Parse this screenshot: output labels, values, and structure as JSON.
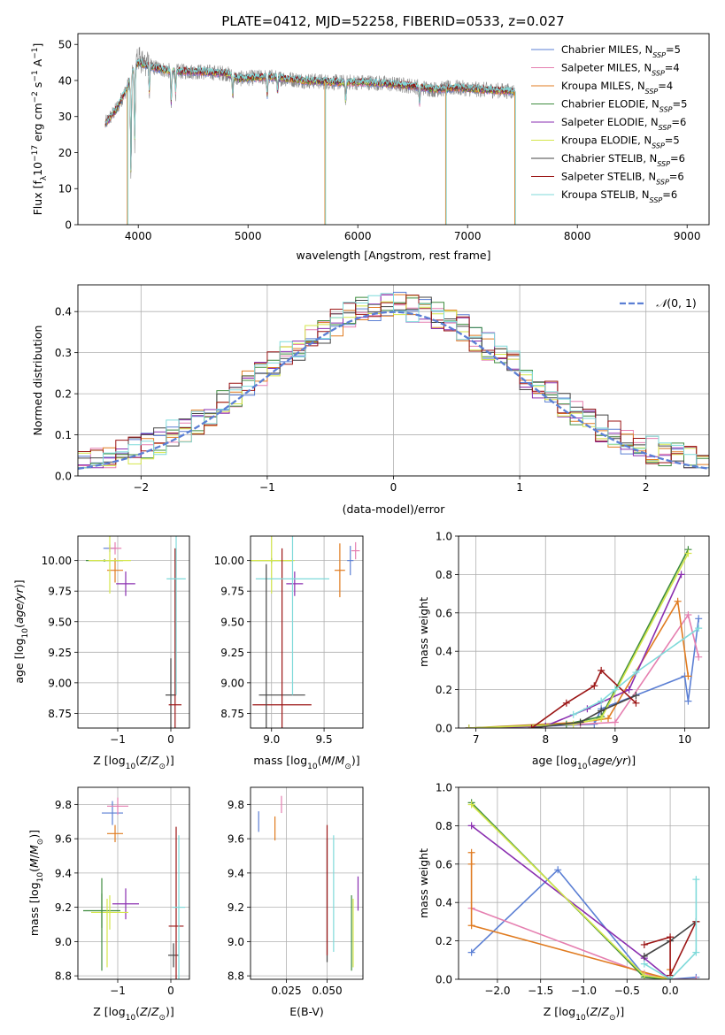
{
  "figure_title": "PLATE=0412, MJD=52258, FIBERID=0533, z=0.027",
  "colors": {
    "chabrier_miles": "#5b7fd4",
    "salpeter_miles": "#e57fb0",
    "kroupa_miles": "#e07b20",
    "chabrier_elodie": "#3e8c3e",
    "salpeter_elodie": "#8a2eb0",
    "kroupa_elodie": "#d4e64a",
    "chabrier_stelib": "#444444",
    "salpeter_stelib": "#9b1515",
    "kroupa_stelib": "#7fdada",
    "grid": "#b0b0b0"
  },
  "legend_labels": [
    {
      "pre": "Chabrier MILES, N",
      "sub": "SSP",
      "post": "=5"
    },
    {
      "pre": "Salpeter MILES, N",
      "sub": "SSP",
      "post": "=4"
    },
    {
      "pre": "Kroupa MILES, N",
      "sub": "SSP",
      "post": "=4"
    },
    {
      "pre": "Chabrier ELODIE, N",
      "sub": "SSP",
      "post": "=5"
    },
    {
      "pre": "Salpeter ELODIE, N",
      "sub": "SSP",
      "post": "=6"
    },
    {
      "pre": "Kroupa ELODIE, N",
      "sub": "SSP",
      "post": "=5"
    },
    {
      "pre": "Chabrier STELIB, N",
      "sub": "SSP",
      "post": "=6"
    },
    {
      "pre": "Salpeter STELIB, N",
      "sub": "SSP",
      "post": "=6"
    },
    {
      "pre": "Kroupa STELIB, N",
      "sub": "SSP",
      "post": "=6"
    }
  ],
  "chart_data": [
    {
      "id": "spectrum",
      "type": "line",
      "title": "PLATE=0412, MJD=52258, FIBERID=0533, z=0.027",
      "xlabel": "wavelength [Angstrom, rest frame]",
      "ylabel": "Flux [f_λ 10^-17 erg cm^-2 s^-1 A^-1]",
      "xlim": [
        3450,
        9200
      ],
      "ylim": [
        0,
        53
      ],
      "xticks": [
        4000,
        5000,
        6000,
        7000,
        8000,
        9000
      ],
      "yticks": [
        0,
        10,
        20,
        30,
        40,
        50
      ],
      "legend": "top-right",
      "continuum_points": [
        [
          3700,
          28
        ],
        [
          3800,
          32
        ],
        [
          3900,
          38
        ],
        [
          3950,
          43
        ],
        [
          4000,
          45
        ],
        [
          4100,
          44
        ],
        [
          4300,
          42.5
        ],
        [
          4500,
          42.5
        ],
        [
          4800,
          42
        ],
        [
          4900,
          40.5
        ],
        [
          5200,
          41
        ],
        [
          5500,
          40
        ],
        [
          5800,
          39.5
        ],
        [
          6100,
          39.5
        ],
        [
          6300,
          39
        ],
        [
          6500,
          38.5
        ],
        [
          6700,
          37.5
        ],
        [
          6900,
          38
        ],
        [
          7100,
          37.5
        ],
        [
          7400,
          37
        ]
      ],
      "model_continuum_points": [
        [
          7400,
          37
        ],
        [
          7700,
          36.5
        ],
        [
          8000,
          35.5
        ],
        [
          8500,
          34.5
        ],
        [
          9000,
          33
        ],
        [
          9200,
          32.5
        ]
      ],
      "absorption_features": [
        {
          "x": 3933,
          "depth": 30
        },
        {
          "x": 3968,
          "depth": 22
        },
        {
          "x": 4101,
          "depth": 8
        },
        {
          "x": 4300,
          "depth": 10
        },
        {
          "x": 4340,
          "depth": 6
        },
        {
          "x": 4861,
          "depth": 6
        },
        {
          "x": 5175,
          "depth": 6
        },
        {
          "x": 5270,
          "depth": 4
        },
        {
          "x": 5890,
          "depth": 6
        },
        {
          "x": 6563,
          "depth": 5
        }
      ],
      "masked_drops": [
        3900,
        5700,
        6800,
        7430
      ]
    },
    {
      "id": "residuals",
      "type": "step",
      "xlabel": "(data-model)/error",
      "ylabel": "Normed distribution",
      "xlim": [
        -2.5,
        2.5
      ],
      "ylim": [
        0,
        0.465
      ],
      "xticks": [
        -2,
        -1,
        0,
        1,
        2
      ],
      "yticks": [
        0.0,
        0.1,
        0.2,
        0.3,
        0.4
      ],
      "bin_width": 0.1,
      "reference_curve": {
        "label": "N(0,1)",
        "mu": 0,
        "sigma": 1
      },
      "legend": "top-right"
    },
    {
      "id": "age_vs_Z",
      "type": "errorbar",
      "xlabel": "Z [log10(Z/Z⊙)]",
      "ylabel": "age [log10(age/yr)]",
      "xlim": [
        -1.75,
        0.35
      ],
      "ylim": [
        8.63,
        10.2
      ],
      "xticks": [
        -1,
        0
      ],
      "yticks": [
        8.75,
        9.0,
        9.25,
        9.5,
        9.75,
        10.0
      ],
      "points": [
        {
          "s": "chabrier_miles",
          "x": -1.15,
          "y": 10.1,
          "xe": 0.12,
          "ye": 0.03
        },
        {
          "s": "salpeter_miles",
          "x": -1.05,
          "y": 10.1,
          "xe": 0.12,
          "ye": 0.05
        },
        {
          "s": "kroupa_miles",
          "x": -1.05,
          "y": 9.92,
          "xe": 0.15,
          "ye": 0.1
        },
        {
          "s": "chabrier_elodie",
          "x": -1.25,
          "y": 10.0,
          "xe": 0.35,
          "ye": 0.01
        },
        {
          "s": "salpeter_elodie",
          "x": -0.85,
          "y": 9.81,
          "xe": 0.18,
          "ye": 0.1
        },
        {
          "s": "kroupa_elodie",
          "x": -1.15,
          "y": 10.0,
          "xe": 0.4,
          "ye": 0.27
        },
        {
          "s": "chabrier_stelib",
          "x": 0.0,
          "y": 8.9,
          "xe": 0.1,
          "ye": 0.3
        },
        {
          "s": "salpeter_stelib",
          "x": 0.08,
          "y": 8.82,
          "xe": 0.12,
          "ye": 1.28
        },
        {
          "s": "kroupa_stelib",
          "x": 0.1,
          "y": 9.85,
          "xe": 0.18,
          "ye": 0.95
        }
      ]
    },
    {
      "id": "age_vs_mass",
      "type": "errorbar",
      "xlabel": "mass [log10(M/M⊙)]",
      "ylabel": "",
      "xlim": [
        8.8,
        9.87
      ],
      "ylim": [
        8.63,
        10.2
      ],
      "xticks": [
        9.0,
        9.5
      ],
      "yticks": [
        8.75,
        9.0,
        9.25,
        9.5,
        9.75,
        10.0
      ],
      "points": [
        {
          "s": "chabrier_miles",
          "x": 9.75,
          "y": 10.0,
          "xe": 0.03,
          "ye": 0.12
        },
        {
          "s": "salpeter_miles",
          "x": 9.8,
          "y": 10.08,
          "xe": 0.04,
          "ye": 0.07
        },
        {
          "s": "kroupa_miles",
          "x": 9.65,
          "y": 9.92,
          "xe": 0.05,
          "ye": 0.22
        },
        {
          "s": "chabrier_elodie",
          "x": 9.0,
          "y": 10.0,
          "xe": 0.2,
          "ye": 0.02
        },
        {
          "s": "salpeter_elodie",
          "x": 9.22,
          "y": 9.81,
          "xe": 0.08,
          "ye": 0.1
        },
        {
          "s": "kroupa_elodie",
          "x": 9.0,
          "y": 10.0,
          "xe": 0.22,
          "ye": 0.27
        },
        {
          "s": "chabrier_stelib",
          "x": 9.1,
          "y": 8.9,
          "xe": 0.22,
          "ye": 0.0
        },
        {
          "s": "salpeter_stelib",
          "x": 9.1,
          "y": 8.82,
          "xe": 0.28,
          "ye": 1.28
        },
        {
          "s": "kroupa_stelib",
          "x": 9.2,
          "y": 9.85,
          "xe": 0.35,
          "ye": 0.95
        },
        {
          "s": "chabrier_stelib",
          "x": 8.95,
          "y": 8.9,
          "xe": 0.0,
          "ye": 1.07
        }
      ]
    },
    {
      "id": "weight_vs_age",
      "type": "line",
      "xlabel": "age [log10(age/yr)]",
      "ylabel": "mass weight",
      "xlim": [
        6.75,
        10.35
      ],
      "ylim": [
        0,
        1.0
      ],
      "xticks": [
        7,
        8,
        9,
        10
      ],
      "yticks": [
        0.0,
        0.2,
        0.4,
        0.6,
        0.8,
        1.0
      ],
      "series": [
        {
          "s": "chabrier_miles",
          "x": [
            6.9,
            8.0,
            8.7,
            8.8,
            10.0,
            10.05,
            10.2
          ],
          "y": [
            0.0,
            0.01,
            0.02,
            0.1,
            0.27,
            0.14,
            0.57
          ]
        },
        {
          "s": "salpeter_miles",
          "x": [
            6.9,
            8.5,
            9.0,
            10.05,
            10.2
          ],
          "y": [
            0.0,
            0.02,
            0.03,
            0.59,
            0.37
          ]
        },
        {
          "s": "kroupa_miles",
          "x": [
            6.9,
            8.5,
            8.9,
            9.9,
            10.05
          ],
          "y": [
            0.0,
            0.03,
            0.05,
            0.66,
            0.27
          ]
        },
        {
          "s": "chabrier_elodie",
          "x": [
            6.9,
            8.3,
            8.8,
            10.05
          ],
          "y": [
            0.0,
            0.02,
            0.06,
            0.93
          ]
        },
        {
          "s": "salpeter_elodie",
          "x": [
            6.9,
            8.0,
            8.6,
            9.2,
            9.95
          ],
          "y": [
            0.0,
            0.01,
            0.1,
            0.2,
            0.8
          ]
        },
        {
          "s": "kroupa_elodie",
          "x": [
            6.9,
            8.4,
            8.8,
            10.05
          ],
          "y": [
            0.0,
            0.02,
            0.05,
            0.91
          ]
        },
        {
          "s": "chabrier_stelib",
          "x": [
            7.8,
            8.5,
            8.8,
            9.3
          ],
          "y": [
            0.0,
            0.03,
            0.09,
            0.17
          ]
        },
        {
          "s": "salpeter_stelib",
          "x": [
            7.8,
            8.3,
            8.7,
            8.8,
            9.3
          ],
          "y": [
            0.0,
            0.13,
            0.22,
            0.3,
            0.13
          ]
        },
        {
          "s": "kroupa_stelib",
          "x": [
            8.4,
            8.8,
            9.0,
            9.3,
            10.2
          ],
          "y": [
            0.07,
            0.14,
            0.2,
            0.29,
            0.52
          ]
        }
      ]
    },
    {
      "id": "mass_vs_Z",
      "type": "errorbar",
      "xlabel": "Z [log10(Z/Z⊙)]",
      "ylabel": "mass [log10(M/M⊙)]",
      "xlim": [
        -1.75,
        0.35
      ],
      "ylim": [
        8.78,
        9.9
      ],
      "xticks": [
        -1,
        0
      ],
      "yticks": [
        8.8,
        9.0,
        9.2,
        9.4,
        9.6,
        9.8
      ],
      "points": [
        {
          "s": "chabrier_miles",
          "x": -1.1,
          "y": 9.75,
          "xe": 0.2,
          "ye": 0.07
        },
        {
          "s": "salpeter_miles",
          "x": -1.0,
          "y": 9.79,
          "xe": 0.2,
          "ye": 0.05
        },
        {
          "s": "kroupa_miles",
          "x": -1.05,
          "y": 9.63,
          "xe": 0.15,
          "ye": 0.05
        },
        {
          "s": "chabrier_elodie",
          "x": -1.3,
          "y": 9.18,
          "xe": 0.35,
          "ye": 0.1
        },
        {
          "s": "salpeter_elodie",
          "x": -0.85,
          "y": 9.22,
          "xe": 0.25,
          "ye": 0.09
        },
        {
          "s": "kroupa_elodie",
          "x": -1.15,
          "y": 9.17,
          "xe": 0.35,
          "ye": 0.1
        },
        {
          "s": "chabrier_stelib",
          "x": 0.05,
          "y": 8.92,
          "xe": 0.1,
          "ye": 0.07
        },
        {
          "s": "salpeter_stelib",
          "x": 0.1,
          "y": 9.09,
          "xe": 0.14,
          "ye": 0.58
        },
        {
          "s": "kroupa_stelib",
          "x": 0.15,
          "y": 9.2,
          "xe": 0.12,
          "ye": 0.42
        },
        {
          "s": "chabrier_elodie",
          "x": -1.3,
          "y": 9.1,
          "xe": 0.0,
          "ye": 0.27
        },
        {
          "s": "kroupa_elodie",
          "x": -1.2,
          "y": 9.05,
          "xe": 0.0,
          "ye": 0.2
        }
      ]
    },
    {
      "id": "mass_vs_ebv",
      "type": "errorbar",
      "xlabel": "E(B-V)",
      "ylabel": "",
      "xlim": [
        0.003,
        0.072
      ],
      "ylim": [
        8.78,
        9.9
      ],
      "xticks": [
        0.025,
        0.05
      ],
      "xticklabels": [
        "0.025",
        "0.050"
      ],
      "yticks": [
        8.8,
        9.0,
        9.2,
        9.4,
        9.6,
        9.8
      ],
      "points": [
        {
          "s": "chabrier_miles",
          "x": 0.008,
          "y": 9.7,
          "xe": 0,
          "ye": 0.06
        },
        {
          "s": "salpeter_miles",
          "x": 0.022,
          "y": 9.8,
          "xe": 0,
          "ye": 0.05
        },
        {
          "s": "kroupa_miles",
          "x": 0.018,
          "y": 9.66,
          "xe": 0,
          "ye": 0.07
        },
        {
          "s": "chabrier_stelib",
          "x": 0.05,
          "y": 9.24,
          "xe": 0,
          "ye": 0.36
        },
        {
          "s": "salpeter_stelib",
          "x": 0.05,
          "y": 9.3,
          "xe": 0,
          "ye": 0.38
        },
        {
          "s": "kroupa_stelib",
          "x": 0.054,
          "y": 9.28,
          "xe": 0,
          "ye": 0.34
        },
        {
          "s": "chabrier_elodie",
          "x": 0.065,
          "y": 9.05,
          "xe": 0,
          "ye": 0.22
        },
        {
          "s": "kroupa_elodie",
          "x": 0.066,
          "y": 9.05,
          "xe": 0,
          "ye": 0.2
        },
        {
          "s": "salpeter_elodie",
          "x": 0.069,
          "y": 9.28,
          "xe": 0,
          "ye": 0.1
        }
      ]
    },
    {
      "id": "weight_vs_Z",
      "type": "line",
      "xlabel": "Z [log10(Z/Z⊙)]",
      "ylabel": "mass weight",
      "xlim": [
        -2.45,
        0.45
      ],
      "ylim": [
        0,
        1.0
      ],
      "xticks": [
        -2.0,
        -1.5,
        -1.0,
        -0.5,
        0.0
      ],
      "yticks": [
        0.0,
        0.2,
        0.4,
        0.6,
        0.8,
        1.0
      ],
      "series": [
        {
          "s": "chabrier_miles",
          "x": [
            -2.3,
            -1.3,
            -0.3,
            0.0,
            0.3
          ],
          "y": [
            0.14,
            0.57,
            0.02,
            0.0,
            0.01
          ]
        },
        {
          "s": "salpeter_miles",
          "x": [
            -2.3,
            -0.3,
            0.0,
            0.3
          ],
          "y": [
            0.37,
            0.03,
            0.0,
            0.0
          ]
        },
        {
          "s": "kroupa_miles",
          "x": [
            -2.3,
            -2.3,
            -2.3,
            0.0,
            0.0
          ],
          "y": [
            0.66,
            0.6,
            0.28,
            0.0,
            0.05
          ]
        },
        {
          "s": "chabrier_elodie",
          "x": [
            -2.3,
            -0.3,
            0.0
          ],
          "y": [
            0.92,
            0.01,
            0.0
          ]
        },
        {
          "s": "salpeter_elodie",
          "x": [
            -2.3,
            -0.3,
            0.0
          ],
          "y": [
            0.8,
            0.11,
            0.0
          ]
        },
        {
          "s": "kroupa_elodie",
          "x": [
            -2.3,
            -0.3,
            0.0
          ],
          "y": [
            0.91,
            0.02,
            0.0
          ]
        },
        {
          "s": "chabrier_stelib",
          "x": [
            -0.3,
            0.0,
            0.3
          ],
          "y": [
            0.12,
            0.2,
            0.3
          ]
        },
        {
          "s": "salpeter_stelib",
          "x": [
            -0.3,
            0.0,
            0.0,
            0.3
          ],
          "y": [
            0.18,
            0.22,
            0.02,
            0.3
          ]
        },
        {
          "s": "kroupa_stelib",
          "x": [
            -0.3,
            0.0,
            0.3,
            0.3
          ],
          "y": [
            0.08,
            0.0,
            0.14,
            0.52
          ]
        }
      ]
    }
  ]
}
